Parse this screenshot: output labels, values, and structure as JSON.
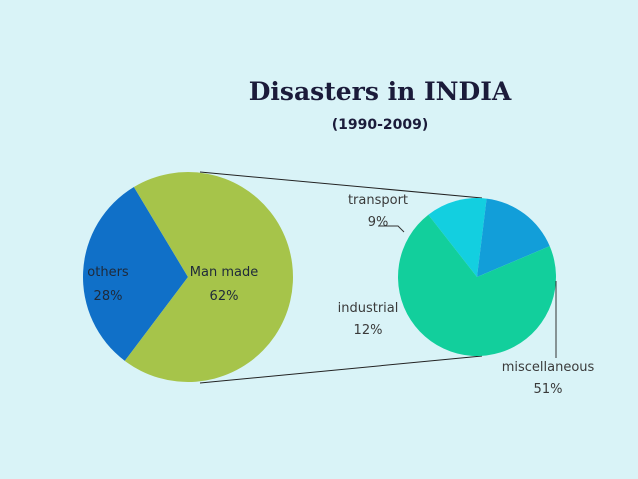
{
  "colors": {
    "background": "#d9f3f7",
    "others": "#1070c8",
    "man_made": "#a6c44a",
    "transport": "#13cfe0",
    "industrial": "#129ed9",
    "miscellaneous": "#12cf9c"
  },
  "chart_data": [
    {
      "type": "pie",
      "title": "Disasters in INDIA",
      "subtitle": "(1990-2009)",
      "slices": [
        {
          "label": "others",
          "value": 28,
          "value_label": "28%"
        },
        {
          "label": "Man made",
          "value": 62,
          "value_label": "62%"
        }
      ]
    },
    {
      "type": "pie",
      "title": "",
      "slices": [
        {
          "label": "transport",
          "value": 9,
          "value_label": "9%"
        },
        {
          "label": "industrial",
          "value": 12,
          "value_label": "12%"
        },
        {
          "label": "miscellaneous",
          "value": 51,
          "value_label": "51%"
        }
      ]
    }
  ]
}
